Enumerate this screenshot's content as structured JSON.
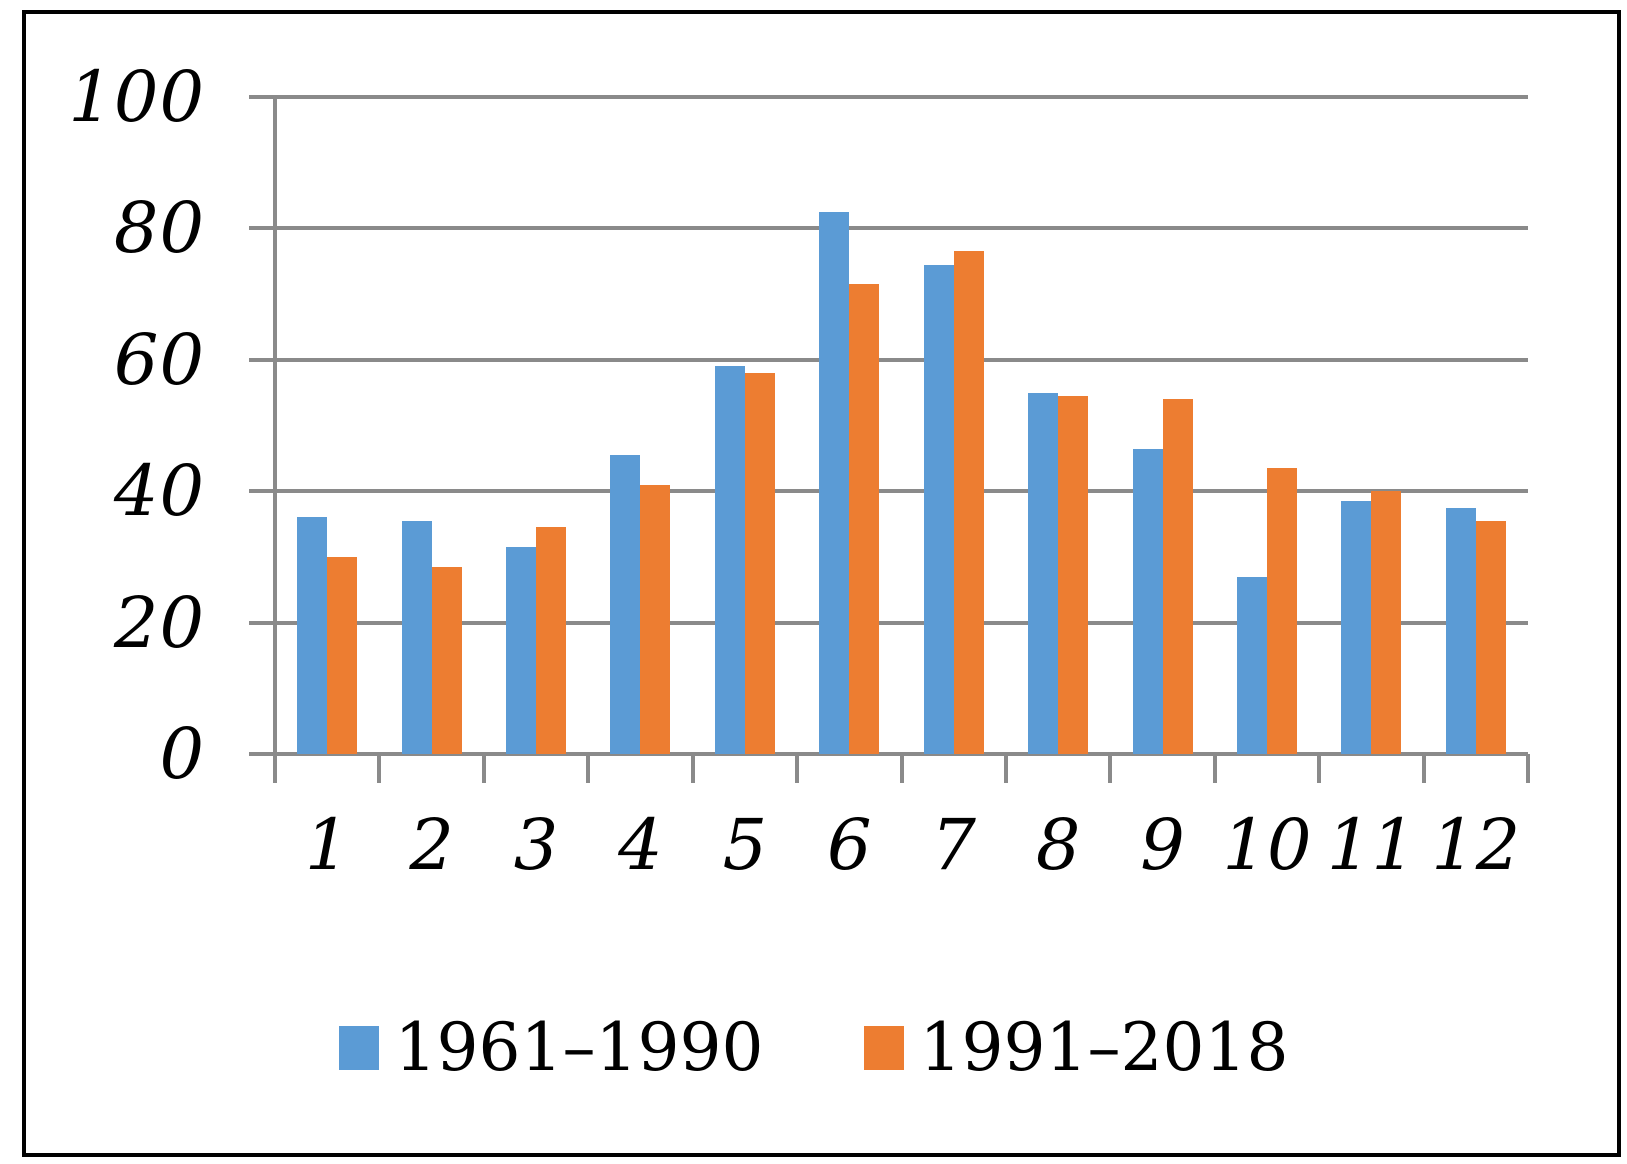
{
  "chart_data": {
    "type": "bar",
    "title": "",
    "xlabel": "",
    "ylabel": "",
    "categories": [
      "1",
      "2",
      "3",
      "4",
      "5",
      "6",
      "7",
      "8",
      "9",
      "10",
      "11",
      "12"
    ],
    "series": [
      {
        "name": "1961–1990",
        "color": "#5B9BD5",
        "values": [
          36,
          35.5,
          31.5,
          45.5,
          59,
          82.5,
          74.5,
          55,
          46.5,
          27,
          38.5,
          37.5
        ]
      },
      {
        "name": "1991–2018",
        "color": "#ED7D31",
        "values": [
          30,
          28.5,
          34.5,
          41,
          58,
          71.5,
          76.5,
          54.5,
          54,
          43.5,
          40,
          35.5
        ]
      }
    ],
    "ylim": [
      0,
      100
    ],
    "yticks": [
      0,
      20,
      40,
      60,
      80,
      100
    ],
    "grid": true,
    "legend_position": "bottom"
  },
  "colors": {
    "grid": "#8A8A8A",
    "frame": "#000000",
    "background": "#FFFFFF",
    "text": "#000000"
  }
}
